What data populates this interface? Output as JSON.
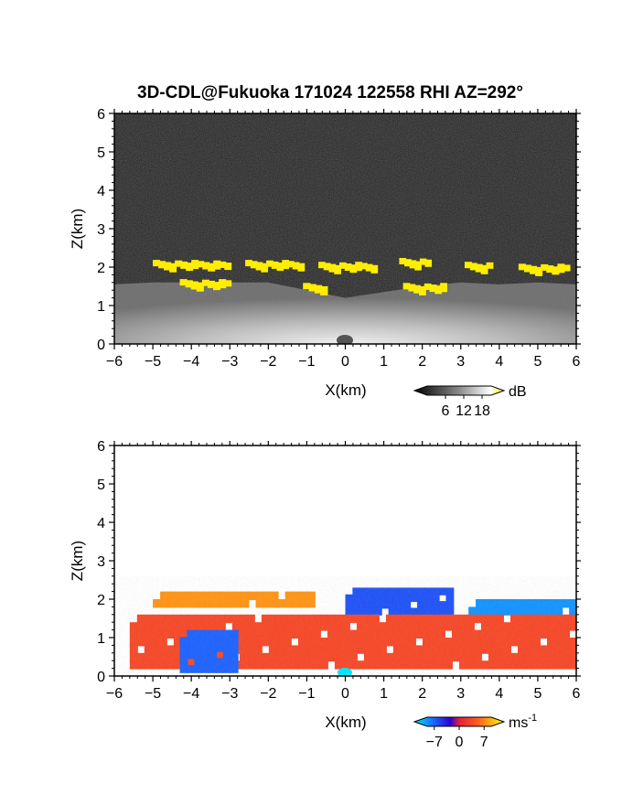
{
  "title": "3D-CDL@Fukuoka 171024 122558 RHI AZ=292°",
  "chart_data": [
    {
      "type": "heatmap",
      "name": "intensity",
      "xlabel": "X(km)",
      "ylabel": "Z(km)",
      "xlim": [
        -6,
        6
      ],
      "ylim": [
        0,
        6
      ],
      "xticks": [
        "-6",
        "-5",
        "-4",
        "-3",
        "-2",
        "-1",
        "0",
        "1",
        "2",
        "3",
        "4",
        "5",
        "6"
      ],
      "yticks": [
        "0",
        "1",
        "2",
        "3",
        "4",
        "5",
        "6"
      ],
      "colorbar": {
        "unit": "dB",
        "ticks": [
          "6",
          "12",
          "18"
        ],
        "range": [
          0,
          21
        ]
      },
      "cloud_base_km": [
        [
          -6,
          1.55
        ],
        [
          -5,
          1.6
        ],
        [
          -4,
          1.6
        ],
        [
          -3,
          1.6
        ],
        [
          -2,
          1.6
        ],
        [
          -1,
          1.4
        ],
        [
          0,
          1.2
        ],
        [
          1,
          1.35
        ],
        [
          2,
          1.5
        ],
        [
          3,
          1.6
        ],
        [
          4,
          1.55
        ],
        [
          5,
          1.6
        ],
        [
          6,
          1.55
        ]
      ],
      "yellow_layer_km": [
        {
          "x": [
            -5.0,
            -3.0
          ],
          "z": 2.05
        },
        {
          "x": [
            -2.6,
            -1.1
          ],
          "z": 2.05
        },
        {
          "x": [
            -0.7,
            0.8
          ],
          "z": 2.0
        },
        {
          "x": [
            1.4,
            2.2
          ],
          "z": 2.1
        },
        {
          "x": [
            3.1,
            3.8
          ],
          "z": 2.0
        },
        {
          "x": [
            4.5,
            5.8
          ],
          "z": 1.95
        },
        {
          "x": [
            -4.3,
            -3.0
          ],
          "z": 1.55
        },
        {
          "x": [
            -1.1,
            -0.5
          ],
          "z": 1.45
        },
        {
          "x": [
            1.5,
            2.6
          ],
          "z": 1.45
        }
      ]
    },
    {
      "type": "heatmap",
      "name": "doppler-velocity",
      "xlabel": "X(km)",
      "ylabel": "Z(km)",
      "xlim": [
        -6,
        6
      ],
      "ylim": [
        0,
        6
      ],
      "xticks": [
        "-6",
        "-5",
        "-4",
        "-3",
        "-2",
        "-1",
        "0",
        "1",
        "2",
        "3",
        "4",
        "5",
        "6"
      ],
      "yticks": [
        "0",
        "1",
        "2",
        "3",
        "4",
        "5",
        "6"
      ],
      "colorbar": {
        "unit": "ms",
        "unit_exponent": "-1",
        "ticks": [
          "-7",
          "0",
          "7"
        ],
        "range": [
          -9,
          9
        ]
      },
      "regions_ms": [
        {
          "label": "upper-left",
          "x": [
            -5.0,
            -0.8
          ],
          "z": [
            1.8,
            2.2
          ],
          "v": 5.5
        },
        {
          "label": "upper-mid",
          "x": [
            0.0,
            2.8
          ],
          "z": [
            1.6,
            2.3
          ],
          "v": -4.5
        },
        {
          "label": "upper-right",
          "x": [
            3.2,
            6.0
          ],
          "z": [
            1.6,
            2.0
          ],
          "v": -6.5
        },
        {
          "label": "lower-band",
          "x": [
            -5.6,
            6.0
          ],
          "z": [
            0.2,
            1.6
          ],
          "v": 2.5
        },
        {
          "label": "left-pocket",
          "x": [
            -4.3,
            -2.8
          ],
          "z": [
            0.1,
            1.2
          ],
          "v": -5
        }
      ]
    }
  ]
}
